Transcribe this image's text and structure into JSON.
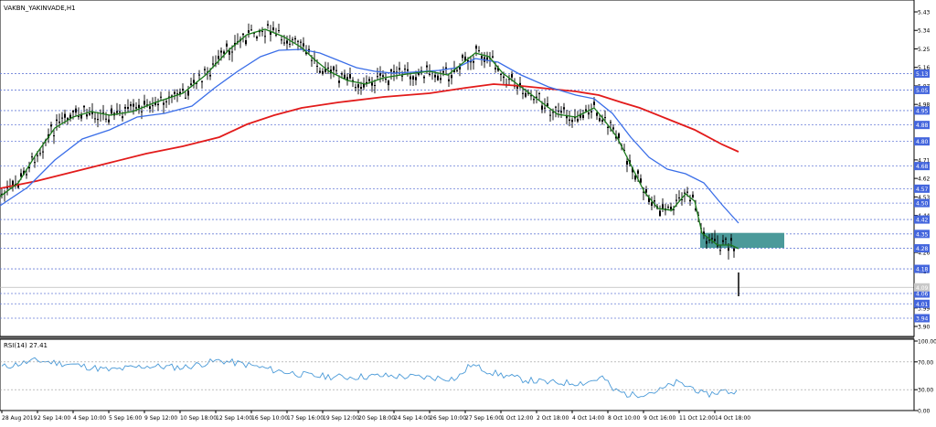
{
  "main_panel": {
    "title": "VAKBN_YAKINVADE,H1",
    "price_axis_ticks": [
      "5.43",
      "5.34",
      "5.25",
      "5.16",
      "5.07",
      "4.98",
      "4.89",
      "4.80",
      "4.71",
      "4.62",
      "4.53",
      "4.44",
      "4.35",
      "4.26",
      "4.17",
      "4.08",
      "3.99",
      "3.90"
    ],
    "price_labels": [
      "5.13",
      "5.05",
      "4.95",
      "4.88",
      "4.80",
      "4.68",
      "4.57",
      "4.50",
      "4.42",
      "4.35",
      "4.28",
      "4.18",
      "4.06",
      "4.01",
      "3.94"
    ],
    "current_price_label": "4.09"
  },
  "rsi_panel": {
    "title": "RSI(14) 27.41",
    "axis_ticks": [
      "100.00",
      "70.00",
      "30.00",
      "0.00"
    ]
  },
  "time_axis": {
    "labels": [
      "28 Aug 2019",
      "2 Sep 14:00",
      "4 Sep 10:00",
      "5 Sep 16:00",
      "9 Sep 12:00",
      "10 Sep 18:00",
      "12 Sep 14:00",
      "16 Sep 10:00",
      "17 Sep 16:00",
      "19 Sep 12:00",
      "20 Sep 18:00",
      "24 Sep 14:00",
      "26 Sep 10:00",
      "27 Sep 16:00",
      "1 Oct 12:00",
      "2 Oct 18:00",
      "4 Oct 14:00",
      "8 Oct 10:00",
      "9 Oct 16:00",
      "11 Oct 12:00",
      "14 Oct 18:00"
    ]
  },
  "colors": {
    "price_bars": "#000000",
    "ma_fast": "#1a7a1a",
    "ma_mid": "#3a6ee8",
    "ma_slow": "#e21b1b",
    "rsi_line": "#4a9ad8",
    "grid_dotted": "#6a7fd8",
    "label_box": "#4466dd",
    "zone": "#4b9a9a"
  }
}
